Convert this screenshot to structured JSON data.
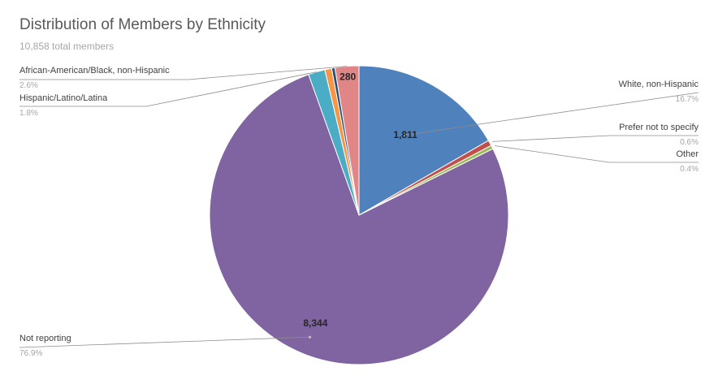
{
  "title": "Distribution of Members by Ethnicity",
  "subtitle": "10,858 total members",
  "chart_data": {
    "type": "pie",
    "title": "Distribution of Members by Ethnicity",
    "subtitle": "10,858 total members",
    "total": 10858,
    "start_angle_deg": 0,
    "direction": "clockwise",
    "slices": [
      {
        "label": "White, non-Hispanic",
        "value": 1811,
        "value_label": "1,811",
        "percent_label": "16.7%",
        "color": "#4f81bd"
      },
      {
        "label": "Prefer not to specify",
        "value": 65,
        "value_label": "",
        "percent_label": "0.6%",
        "color": "#c0504d"
      },
      {
        "label": "Other",
        "value": 43,
        "value_label": "",
        "percent_label": "0.4%",
        "color": "#9bbb59"
      },
      {
        "label": "Not reporting",
        "value": 8344,
        "value_label": "8,344",
        "percent_label": "76.9%",
        "color": "#8064a2"
      },
      {
        "label": "Hispanic/Latino/Latina",
        "value": 196,
        "value_label": "",
        "percent_label": "1.8%",
        "color": "#4bacc6"
      },
      {
        "label": "",
        "value": 80,
        "value_label": "",
        "percent_label": "",
        "color": "#f79646"
      },
      {
        "label": "",
        "value": 39,
        "value_label": "",
        "percent_label": "",
        "color": "#2c4d75"
      },
      {
        "label": "African-American/Black, non-Hispanic",
        "value": 280,
        "value_label": "280",
        "percent_label": "2.6%",
        "color": "#e08686"
      }
    ]
  }
}
